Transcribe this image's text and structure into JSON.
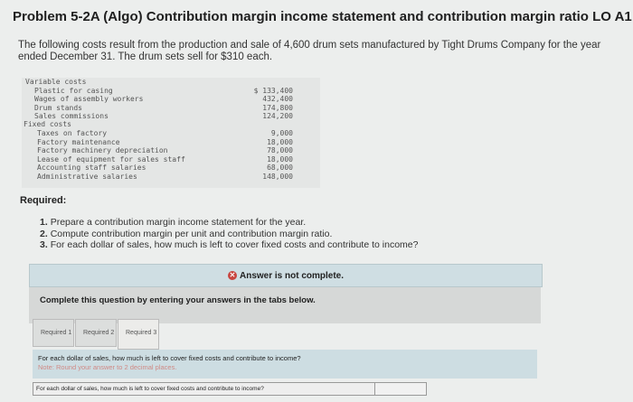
{
  "title": "Problem 5-2A (Algo) Contribution margin income statement and contribution margin ratio LO A1",
  "intro": "The following costs result from the production and sale of 4,600 drum sets manufactured by Tight Drums Company for the year ended December 31. The drum sets sell for $310 each.",
  "costs": {
    "variable_label": "Variable costs",
    "variable": [
      {
        "label": "Plastic for casing",
        "value": "$ 133,400"
      },
      {
        "label": "Wages of assembly workers",
        "value": "432,400"
      },
      {
        "label": "Drum stands",
        "value": "174,800"
      },
      {
        "label": "Sales commissions",
        "value": "124,200"
      }
    ],
    "fixed_label": "Fixed costs",
    "fixed": [
      {
        "label": "Taxes on factory",
        "value": "9,000"
      },
      {
        "label": "Factory maintenance",
        "value": "18,000"
      },
      {
        "label": "Factory machinery depreciation",
        "value": "78,000"
      },
      {
        "label": "Lease of equipment for sales staff",
        "value": "18,000"
      },
      {
        "label": "Accounting staff salaries",
        "value": "68,000"
      },
      {
        "label": "Administrative salaries",
        "value": "148,000"
      }
    ]
  },
  "required_label": "Required:",
  "required": [
    {
      "num": "1.",
      "text": "Prepare a contribution margin income statement for the year."
    },
    {
      "num": "2.",
      "text": "Compute contribution margin per unit and contribution margin ratio."
    },
    {
      "num": "3.",
      "text": "For each dollar of sales, how much is left to cover fixed costs and contribute to income?"
    }
  ],
  "status": "Answer is not complete.",
  "complete_msg": "Complete this question by entering your answers in the tabs below.",
  "tabs": [
    "Required 1",
    "Required 2",
    "Required 3"
  ],
  "active_tab": 2,
  "question": "For each dollar of sales, how much is left to cover fixed costs and contribute to income?",
  "note": "Note: Round your answer to 2 decimal places.",
  "answer_row_label": "For each dollar of sales, how much is left to cover fixed costs and contribute to income?",
  "answer_value": ""
}
